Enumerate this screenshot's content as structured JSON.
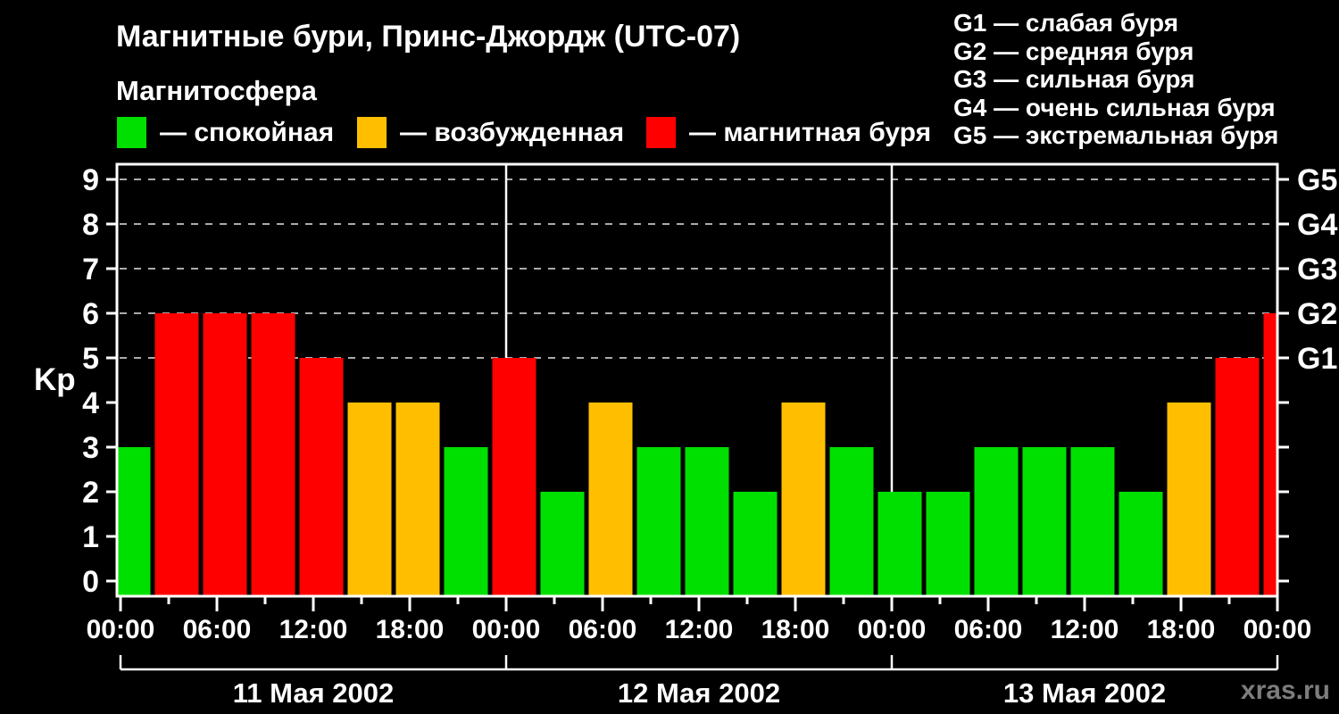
{
  "title": "Магнитные бури, Принс-Джордж (UTC-07)",
  "watermark": "xras.ru",
  "legend": {
    "heading": "Магнитосфера",
    "items": [
      {
        "key": "quiet",
        "label": "— спокойная",
        "color": "#00E000"
      },
      {
        "key": "excited",
        "label": "— возбужденная",
        "color": "#FFBF00"
      },
      {
        "key": "storm",
        "label": "— магнитная буря",
        "color": "#FF0000"
      }
    ]
  },
  "g_scale_legend": {
    "items": [
      {
        "label": "G1 — слабая буря"
      },
      {
        "label": "G2 — средняя буря"
      },
      {
        "label": "G3 — сильная буря"
      },
      {
        "label": "G4 — очень сильная буря"
      },
      {
        "label": "G5 — экстремальная буря"
      }
    ]
  },
  "chart_data": {
    "type": "bar",
    "title": "Магнитные бури, Принс-Джордж (UTC-07)",
    "ylabel": "Kp",
    "ylim": [
      0,
      9
    ],
    "y_ticks": [
      0,
      1,
      2,
      3,
      4,
      5,
      6,
      7,
      8,
      9
    ],
    "gridlines_kp": [
      5,
      6,
      7,
      8,
      9
    ],
    "right_axis_ticks": [
      {
        "kp": 5,
        "label": "G1"
      },
      {
        "kp": 6,
        "label": "G2"
      },
      {
        "kp": 7,
        "label": "G3"
      },
      {
        "kp": 8,
        "label": "G4"
      },
      {
        "kp": 9,
        "label": "G5"
      }
    ],
    "x_hours_total": 72,
    "x_tick_step_hours": 3,
    "x_label_step_hours": 6,
    "x_tick_labels": [
      "00:00",
      "06:00",
      "12:00",
      "18:00",
      "00:00",
      "06:00",
      "12:00",
      "18:00",
      "00:00",
      "06:00",
      "12:00",
      "18:00",
      "00:00"
    ],
    "bar_interval_hours": 3,
    "days": [
      {
        "date": "11 Мая 2002",
        "kp": [
          3,
          6,
          6,
          6,
          5,
          4,
          4,
          3
        ]
      },
      {
        "date": "12 Мая 2002",
        "kp": [
          5,
          2,
          4,
          3,
          3,
          2,
          4,
          3
        ]
      },
      {
        "date": "13 Мая 2002",
        "kp": [
          2,
          2,
          3,
          3,
          3,
          2,
          4,
          5
        ]
      }
    ],
    "trailing_bar_kp": 6,
    "color_rules": {
      "quiet_max_kp": 3,
      "excited_max_kp": 4,
      "colors": {
        "quiet": "#00E000",
        "excited": "#FFBF00",
        "storm": "#FF0000"
      }
    },
    "grid_color": "#ABABAB",
    "axis_color": "#FFFFFF",
    "background": "#000000"
  }
}
